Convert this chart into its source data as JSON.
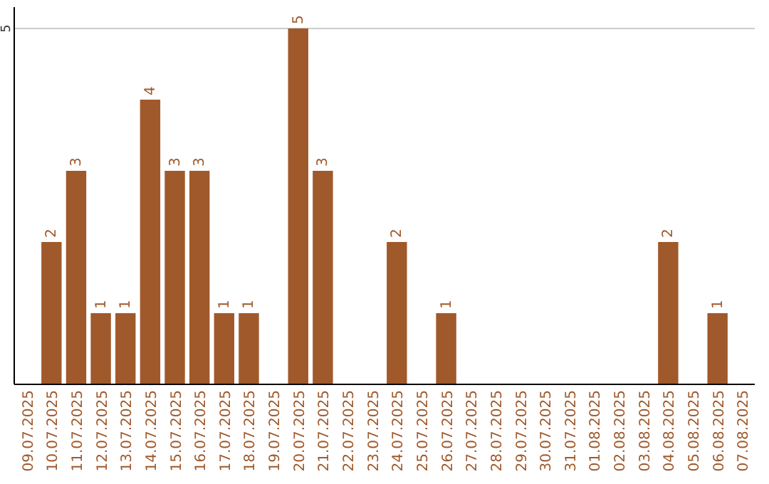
{
  "chart_data": {
    "type": "bar",
    "categories": [
      "09.07.2025",
      "10.07.2025",
      "11.07.2025",
      "12.07.2025",
      "13.07.2025",
      "14.07.2025",
      "15.07.2025",
      "16.07.2025",
      "17.07.2025",
      "18.07.2025",
      "19.07.2025",
      "20.07.2025",
      "21.07.2025",
      "22.07.2025",
      "23.07.2025",
      "24.07.2025",
      "25.07.2025",
      "26.07.2025",
      "27.07.2025",
      "28.07.2025",
      "29.07.2025",
      "30.07.2025",
      "31.07.2025",
      "01.08.2025",
      "02.08.2025",
      "03.08.2025",
      "04.08.2025",
      "05.08.2025",
      "06.08.2025",
      "07.08.2025"
    ],
    "values": [
      0,
      2,
      3,
      1,
      1,
      4,
      3,
      3,
      1,
      1,
      0,
      5,
      3,
      0,
      0,
      2,
      0,
      1,
      0,
      0,
      0,
      0,
      0,
      0,
      0,
      0,
      2,
      0,
      1,
      0
    ],
    "value_labels": [
      null,
      "2",
      "3",
      "1",
      "1",
      "4",
      "3",
      "3",
      "1",
      "1",
      null,
      "5",
      "3",
      null,
      null,
      "2",
      null,
      "1",
      null,
      null,
      null,
      null,
      null,
      null,
      null,
      null,
      "2",
      null,
      "1",
      null
    ],
    "color": "#a0592b",
    "ylim": [
      0,
      5.3
    ],
    "yticks": [
      5
    ],
    "grid": "y"
  }
}
